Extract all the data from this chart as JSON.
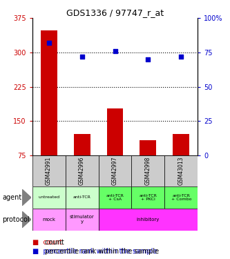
{
  "title": "GDS1336 / 97747_r_at",
  "samples": [
    "GSM42991",
    "GSM42996",
    "GSM42997",
    "GSM42998",
    "GSM43013"
  ],
  "bar_values": [
    348,
    122,
    178,
    108,
    122
  ],
  "bar_base": 75,
  "dot_values_pct": [
    82,
    72,
    76,
    70,
    72
  ],
  "bar_color": "#cc0000",
  "dot_color": "#0000cc",
  "ylim_left": [
    75,
    375
  ],
  "ylim_right": [
    0,
    100
  ],
  "yticks_left": [
    75,
    150,
    225,
    300,
    375
  ],
  "yticks_right": [
    0,
    25,
    50,
    75,
    100
  ],
  "ytick_labels_left": [
    "75",
    "150",
    "225",
    "300",
    "375"
  ],
  "ytick_labels_right": [
    "0",
    "25",
    "50",
    "75",
    "100%"
  ],
  "gridlines": [
    150,
    225,
    300
  ],
  "agent_labels": [
    "untreated",
    "anti-TCR",
    "anti-TCR\n+ CsA",
    "anti-TCR\n+ PKCi",
    "anti-TCR\n+ Combo"
  ],
  "agent_colors": [
    "#ccffcc",
    "#ccffcc",
    "#66ff66",
    "#66ff66",
    "#66ff66"
  ],
  "sample_bg_color": "#cccccc",
  "legend_count_color": "#cc0000",
  "legend_dot_color": "#0000cc",
  "proto_spans": [
    [
      0,
      0,
      "mock",
      "#ff99ff"
    ],
    [
      1,
      1,
      "stimulator\ny",
      "#ff99ff"
    ],
    [
      2,
      4,
      "inhibitory",
      "#ff33ff"
    ]
  ]
}
